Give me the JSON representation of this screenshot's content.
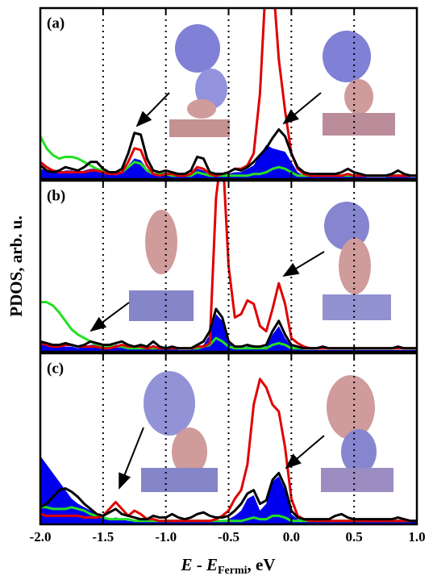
{
  "chart_data": [
    {
      "type": "line",
      "title": "(a)",
      "x": [
        -2.0,
        -1.95,
        -1.9,
        -1.85,
        -1.8,
        -1.75,
        -1.7,
        -1.65,
        -1.6,
        -1.55,
        -1.5,
        -1.45,
        -1.4,
        -1.35,
        -1.3,
        -1.25,
        -1.2,
        -1.15,
        -1.1,
        -1.05,
        -1.0,
        -0.95,
        -0.9,
        -0.85,
        -0.8,
        -0.75,
        -0.7,
        -0.65,
        -0.6,
        -0.55,
        -0.5,
        -0.45,
        -0.4,
        -0.35,
        -0.3,
        -0.25,
        -0.2,
        -0.15,
        -0.1,
        -0.05,
        0.0,
        0.05,
        0.1,
        0.15,
        0.2,
        0.25,
        0.3,
        0.35,
        0.4,
        0.45,
        0.5,
        0.55,
        0.6,
        0.65,
        0.7,
        0.75,
        0.8,
        0.85,
        0.9,
        0.95,
        1.0
      ],
      "xlim": [
        -2.0,
        1.0
      ],
      "ylim": [
        0,
        1
      ],
      "series": [
        {
          "color": "#0000ee",
          "fill": true,
          "values": [
            0.06,
            0.05,
            0.04,
            0.04,
            0.05,
            0.05,
            0.04,
            0.05,
            0.06,
            0.06,
            0.04,
            0.03,
            0.03,
            0.04,
            0.08,
            0.12,
            0.11,
            0.06,
            0.03,
            0.02,
            0.03,
            0.02,
            0.02,
            0.02,
            0.03,
            0.06,
            0.05,
            0.02,
            0.02,
            0.02,
            0.03,
            0.04,
            0.04,
            0.06,
            0.08,
            0.14,
            0.2,
            0.18,
            0.17,
            0.16,
            0.1,
            0.04,
            0.02,
            0.02,
            0.02,
            0.02,
            0.02,
            0.02,
            0.02,
            0.03,
            0.02,
            0.02,
            0.01,
            0.01,
            0.01,
            0.01,
            0.02,
            0.03,
            0.02,
            0.01,
            0.01
          ]
        },
        {
          "color": "#22e022",
          "values": [
            0.25,
            0.18,
            0.14,
            0.12,
            0.13,
            0.13,
            0.12,
            0.1,
            0.08,
            0.06,
            0.05,
            0.04,
            0.03,
            0.04,
            0.07,
            0.1,
            0.09,
            0.05,
            0.03,
            0.03,
            0.03,
            0.02,
            0.02,
            0.02,
            0.02,
            0.04,
            0.03,
            0.02,
            0.02,
            0.02,
            0.02,
            0.02,
            0.02,
            0.02,
            0.03,
            0.03,
            0.04,
            0.06,
            0.07,
            0.06,
            0.04,
            0.02,
            0.02,
            0.02,
            0.02,
            0.02,
            0.02,
            0.02,
            0.02,
            0.02,
            0.02,
            0.02,
            0.02,
            0.02,
            0.02,
            0.02,
            0.02,
            0.02,
            0.02,
            0.02,
            0.02
          ]
        },
        {
          "color": "#e00000",
          "values": [
            0.1,
            0.07,
            0.05,
            0.04,
            0.04,
            0.04,
            0.04,
            0.04,
            0.05,
            0.05,
            0.04,
            0.03,
            0.03,
            0.04,
            0.1,
            0.18,
            0.17,
            0.08,
            0.03,
            0.02,
            0.03,
            0.03,
            0.02,
            0.02,
            0.03,
            0.07,
            0.06,
            0.03,
            0.02,
            0.03,
            0.04,
            0.06,
            0.06,
            0.08,
            0.15,
            0.5,
            1.2,
            1.2,
            0.7,
            0.4,
            0.15,
            0.06,
            0.03,
            0.02,
            0.02,
            0.02,
            0.02,
            0.02,
            0.02,
            0.03,
            0.02,
            0.02,
            0.02,
            0.02,
            0.02,
            0.02,
            0.02,
            0.02,
            0.02,
            0.02,
            0.02
          ]
        },
        {
          "color": "#000000",
          "values": [
            0.08,
            0.05,
            0.04,
            0.05,
            0.07,
            0.06,
            0.05,
            0.07,
            0.1,
            0.1,
            0.06,
            0.04,
            0.04,
            0.06,
            0.15,
            0.27,
            0.26,
            0.12,
            0.05,
            0.04,
            0.05,
            0.04,
            0.03,
            0.03,
            0.05,
            0.13,
            0.12,
            0.04,
            0.03,
            0.03,
            0.04,
            0.06,
            0.05,
            0.07,
            0.1,
            0.14,
            0.18,
            0.24,
            0.29,
            0.25,
            0.15,
            0.07,
            0.04,
            0.03,
            0.03,
            0.03,
            0.03,
            0.03,
            0.04,
            0.06,
            0.04,
            0.03,
            0.02,
            0.02,
            0.02,
            0.02,
            0.03,
            0.05,
            0.03,
            0.02,
            0.02
          ]
        }
      ]
    },
    {
      "type": "line",
      "title": "(b)",
      "ylabel": "PDOS, arb. u.",
      "x": [
        -2.0,
        -1.95,
        -1.9,
        -1.85,
        -1.8,
        -1.75,
        -1.7,
        -1.65,
        -1.6,
        -1.55,
        -1.5,
        -1.45,
        -1.4,
        -1.35,
        -1.3,
        -1.25,
        -1.2,
        -1.15,
        -1.1,
        -1.05,
        -1.0,
        -0.95,
        -0.9,
        -0.85,
        -0.8,
        -0.75,
        -0.7,
        -0.65,
        -0.6,
        -0.55,
        -0.5,
        -0.45,
        -0.4,
        -0.35,
        -0.3,
        -0.25,
        -0.2,
        -0.15,
        -0.1,
        -0.05,
        0.0,
        0.05,
        0.1,
        0.15,
        0.2,
        0.25,
        0.3,
        0.35,
        0.4,
        0.45,
        0.5,
        0.55,
        0.6,
        0.65,
        0.7,
        0.75,
        0.8,
        0.85,
        0.9,
        0.95,
        1.0
      ],
      "xlim": [
        -2.0,
        1.0
      ],
      "ylim": [
        0,
        1
      ],
      "series": [
        {
          "color": "#0000ee",
          "fill": true,
          "values": [
            0.05,
            0.05,
            0.04,
            0.03,
            0.03,
            0.03,
            0.02,
            0.03,
            0.04,
            0.04,
            0.03,
            0.03,
            0.04,
            0.04,
            0.03,
            0.02,
            0.03,
            0.02,
            0.04,
            0.02,
            0.02,
            0.02,
            0.01,
            0.01,
            0.01,
            0.03,
            0.04,
            0.1,
            0.22,
            0.18,
            0.05,
            0.02,
            0.02,
            0.03,
            0.04,
            0.02,
            0.03,
            0.1,
            0.15,
            0.08,
            0.03,
            0.02,
            0.01,
            0.01,
            0.01,
            0.01,
            0.01,
            0.01,
            0.01,
            0.01,
            0.01,
            0.01,
            0.01,
            0.01,
            0.01,
            0.01,
            0.01,
            0.01,
            0.01,
            0.01,
            0.01
          ]
        },
        {
          "color": "#22e022",
          "values": [
            0.29,
            0.29,
            0.27,
            0.23,
            0.18,
            0.13,
            0.1,
            0.08,
            0.06,
            0.04,
            0.03,
            0.03,
            0.03,
            0.03,
            0.02,
            0.02,
            0.02,
            0.02,
            0.02,
            0.02,
            0.02,
            0.02,
            0.02,
            0.02,
            0.02,
            0.02,
            0.03,
            0.04,
            0.08,
            0.06,
            0.03,
            0.02,
            0.02,
            0.02,
            0.02,
            0.02,
            0.02,
            0.04,
            0.05,
            0.04,
            0.02,
            0.02,
            0.02,
            0.02,
            0.02,
            0.02,
            0.02,
            0.02,
            0.02,
            0.02,
            0.02,
            0.02,
            0.02,
            0.02,
            0.02,
            0.02,
            0.02,
            0.02,
            0.02,
            0.02,
            0.02
          ]
        },
        {
          "color": "#e00000",
          "values": [
            0.05,
            0.04,
            0.03,
            0.03,
            0.04,
            0.04,
            0.03,
            0.03,
            0.03,
            0.03,
            0.02,
            0.02,
            0.03,
            0.04,
            0.03,
            0.03,
            0.03,
            0.02,
            0.03,
            0.02,
            0.02,
            0.02,
            0.02,
            0.02,
            0.02,
            0.03,
            0.03,
            0.05,
            0.9,
            1.2,
            0.5,
            0.2,
            0.22,
            0.3,
            0.28,
            0.15,
            0.12,
            0.25,
            0.4,
            0.28,
            0.08,
            0.05,
            0.03,
            0.02,
            0.02,
            0.02,
            0.02,
            0.02,
            0.02,
            0.02,
            0.02,
            0.02,
            0.02,
            0.02,
            0.02,
            0.02,
            0.02,
            0.02,
            0.02,
            0.02,
            0.02
          ]
        },
        {
          "color": "#000000",
          "values": [
            0.06,
            0.05,
            0.04,
            0.04,
            0.05,
            0.04,
            0.03,
            0.04,
            0.06,
            0.05,
            0.04,
            0.04,
            0.05,
            0.06,
            0.04,
            0.03,
            0.04,
            0.03,
            0.06,
            0.03,
            0.02,
            0.03,
            0.02,
            0.02,
            0.02,
            0.04,
            0.06,
            0.12,
            0.25,
            0.2,
            0.06,
            0.03,
            0.03,
            0.04,
            0.03,
            0.03,
            0.04,
            0.12,
            0.18,
            0.1,
            0.04,
            0.03,
            0.02,
            0.02,
            0.02,
            0.03,
            0.02,
            0.02,
            0.02,
            0.02,
            0.02,
            0.02,
            0.02,
            0.02,
            0.02,
            0.02,
            0.02,
            0.03,
            0.02,
            0.02,
            0.02
          ]
        }
      ]
    },
    {
      "type": "line",
      "title": "(c)",
      "xlabel": [
        "E",
        " - ",
        "E",
        "Fermi",
        ", eV"
      ],
      "x": [
        -2.0,
        -1.95,
        -1.9,
        -1.85,
        -1.8,
        -1.75,
        -1.7,
        -1.65,
        -1.6,
        -1.55,
        -1.5,
        -1.45,
        -1.4,
        -1.35,
        -1.3,
        -1.25,
        -1.2,
        -1.15,
        -1.1,
        -1.05,
        -1.0,
        -0.95,
        -0.9,
        -0.85,
        -0.8,
        -0.75,
        -0.7,
        -0.65,
        -0.6,
        -0.55,
        -0.5,
        -0.45,
        -0.4,
        -0.35,
        -0.3,
        -0.25,
        -0.2,
        -0.15,
        -0.1,
        -0.05,
        0.0,
        0.05,
        0.1,
        0.15,
        0.2,
        0.25,
        0.3,
        0.35,
        0.4,
        0.45,
        0.5,
        0.55,
        0.6,
        0.65,
        0.7,
        0.75,
        0.8,
        0.85,
        0.9,
        0.95,
        1.0
      ],
      "xlim": [
        -2.0,
        1.0
      ],
      "ylim": [
        0,
        1
      ],
      "xticks": [
        {
          "value": -2.0,
          "label": "-2.0"
        },
        -1.5,
        {
          "value": -1.0,
          "label": "-1.0"
        },
        -0.5,
        {
          "value": 0.0,
          "label": "0.0"
        },
        0.5,
        {
          "value": 1.0,
          "label": "1.0"
        }
      ],
      "grid": true,
      "series": [
        {
          "color": "#0000ee",
          "fill": true,
          "values": [
            0.4,
            0.35,
            0.3,
            0.25,
            0.2,
            0.15,
            0.12,
            0.1,
            0.08,
            0.06,
            0.04,
            0.03,
            0.04,
            0.03,
            0.02,
            0.02,
            0.02,
            0.02,
            0.02,
            0.02,
            0.02,
            0.02,
            0.02,
            0.02,
            0.02,
            0.02,
            0.02,
            0.02,
            0.02,
            0.02,
            0.03,
            0.05,
            0.08,
            0.15,
            0.17,
            0.08,
            0.12,
            0.25,
            0.28,
            0.2,
            0.06,
            0.03,
            0.02,
            0.02,
            0.02,
            0.02,
            0.02,
            0.02,
            0.02,
            0.02,
            0.02,
            0.02,
            0.02,
            0.02,
            0.02,
            0.02,
            0.02,
            0.02,
            0.02,
            0.02,
            0.02
          ]
        },
        {
          "color": "#22e022",
          "values": [
            0.1,
            0.1,
            0.09,
            0.09,
            0.09,
            0.1,
            0.09,
            0.08,
            0.06,
            0.05,
            0.04,
            0.03,
            0.03,
            0.03,
            0.03,
            0.02,
            0.02,
            0.02,
            0.02,
            0.02,
            0.02,
            0.02,
            0.02,
            0.02,
            0.02,
            0.02,
            0.02,
            0.02,
            0.02,
            0.02,
            0.02,
            0.02,
            0.02,
            0.03,
            0.04,
            0.03,
            0.03,
            0.05,
            0.05,
            0.04,
            0.02,
            0.02,
            0.02,
            0.02,
            0.02,
            0.02,
            0.02,
            0.02,
            0.02,
            0.02,
            0.02,
            0.02,
            0.02,
            0.02,
            0.02,
            0.02,
            0.02,
            0.02,
            0.02,
            0.02,
            0.02
          ]
        },
        {
          "color": "#e00000",
          "values": [
            0.06,
            0.05,
            0.05,
            0.05,
            0.05,
            0.05,
            0.05,
            0.04,
            0.04,
            0.04,
            0.05,
            0.09,
            0.13,
            0.09,
            0.05,
            0.08,
            0.06,
            0.03,
            0.03,
            0.02,
            0.02,
            0.02,
            0.02,
            0.02,
            0.02,
            0.02,
            0.02,
            0.02,
            0.03,
            0.05,
            0.08,
            0.15,
            0.2,
            0.35,
            0.7,
            0.85,
            0.8,
            0.7,
            0.66,
            0.45,
            0.15,
            0.05,
            0.03,
            0.02,
            0.02,
            0.02,
            0.02,
            0.02,
            0.02,
            0.02,
            0.02,
            0.02,
            0.02,
            0.02,
            0.02,
            0.02,
            0.02,
            0.02,
            0.02,
            0.02,
            0.02
          ]
        },
        {
          "color": "#000000",
          "values": [
            0.1,
            0.12,
            0.16,
            0.2,
            0.21,
            0.19,
            0.16,
            0.12,
            0.09,
            0.06,
            0.05,
            0.07,
            0.09,
            0.06,
            0.05,
            0.04,
            0.03,
            0.03,
            0.05,
            0.04,
            0.04,
            0.06,
            0.04,
            0.03,
            0.04,
            0.06,
            0.07,
            0.05,
            0.04,
            0.04,
            0.05,
            0.08,
            0.12,
            0.18,
            0.2,
            0.12,
            0.14,
            0.26,
            0.3,
            0.22,
            0.08,
            0.04,
            0.03,
            0.03,
            0.03,
            0.03,
            0.03,
            0.05,
            0.06,
            0.04,
            0.03,
            0.03,
            0.03,
            0.03,
            0.03,
            0.03,
            0.03,
            0.04,
            0.03,
            0.02,
            0.02
          ]
        }
      ]
    }
  ]
}
